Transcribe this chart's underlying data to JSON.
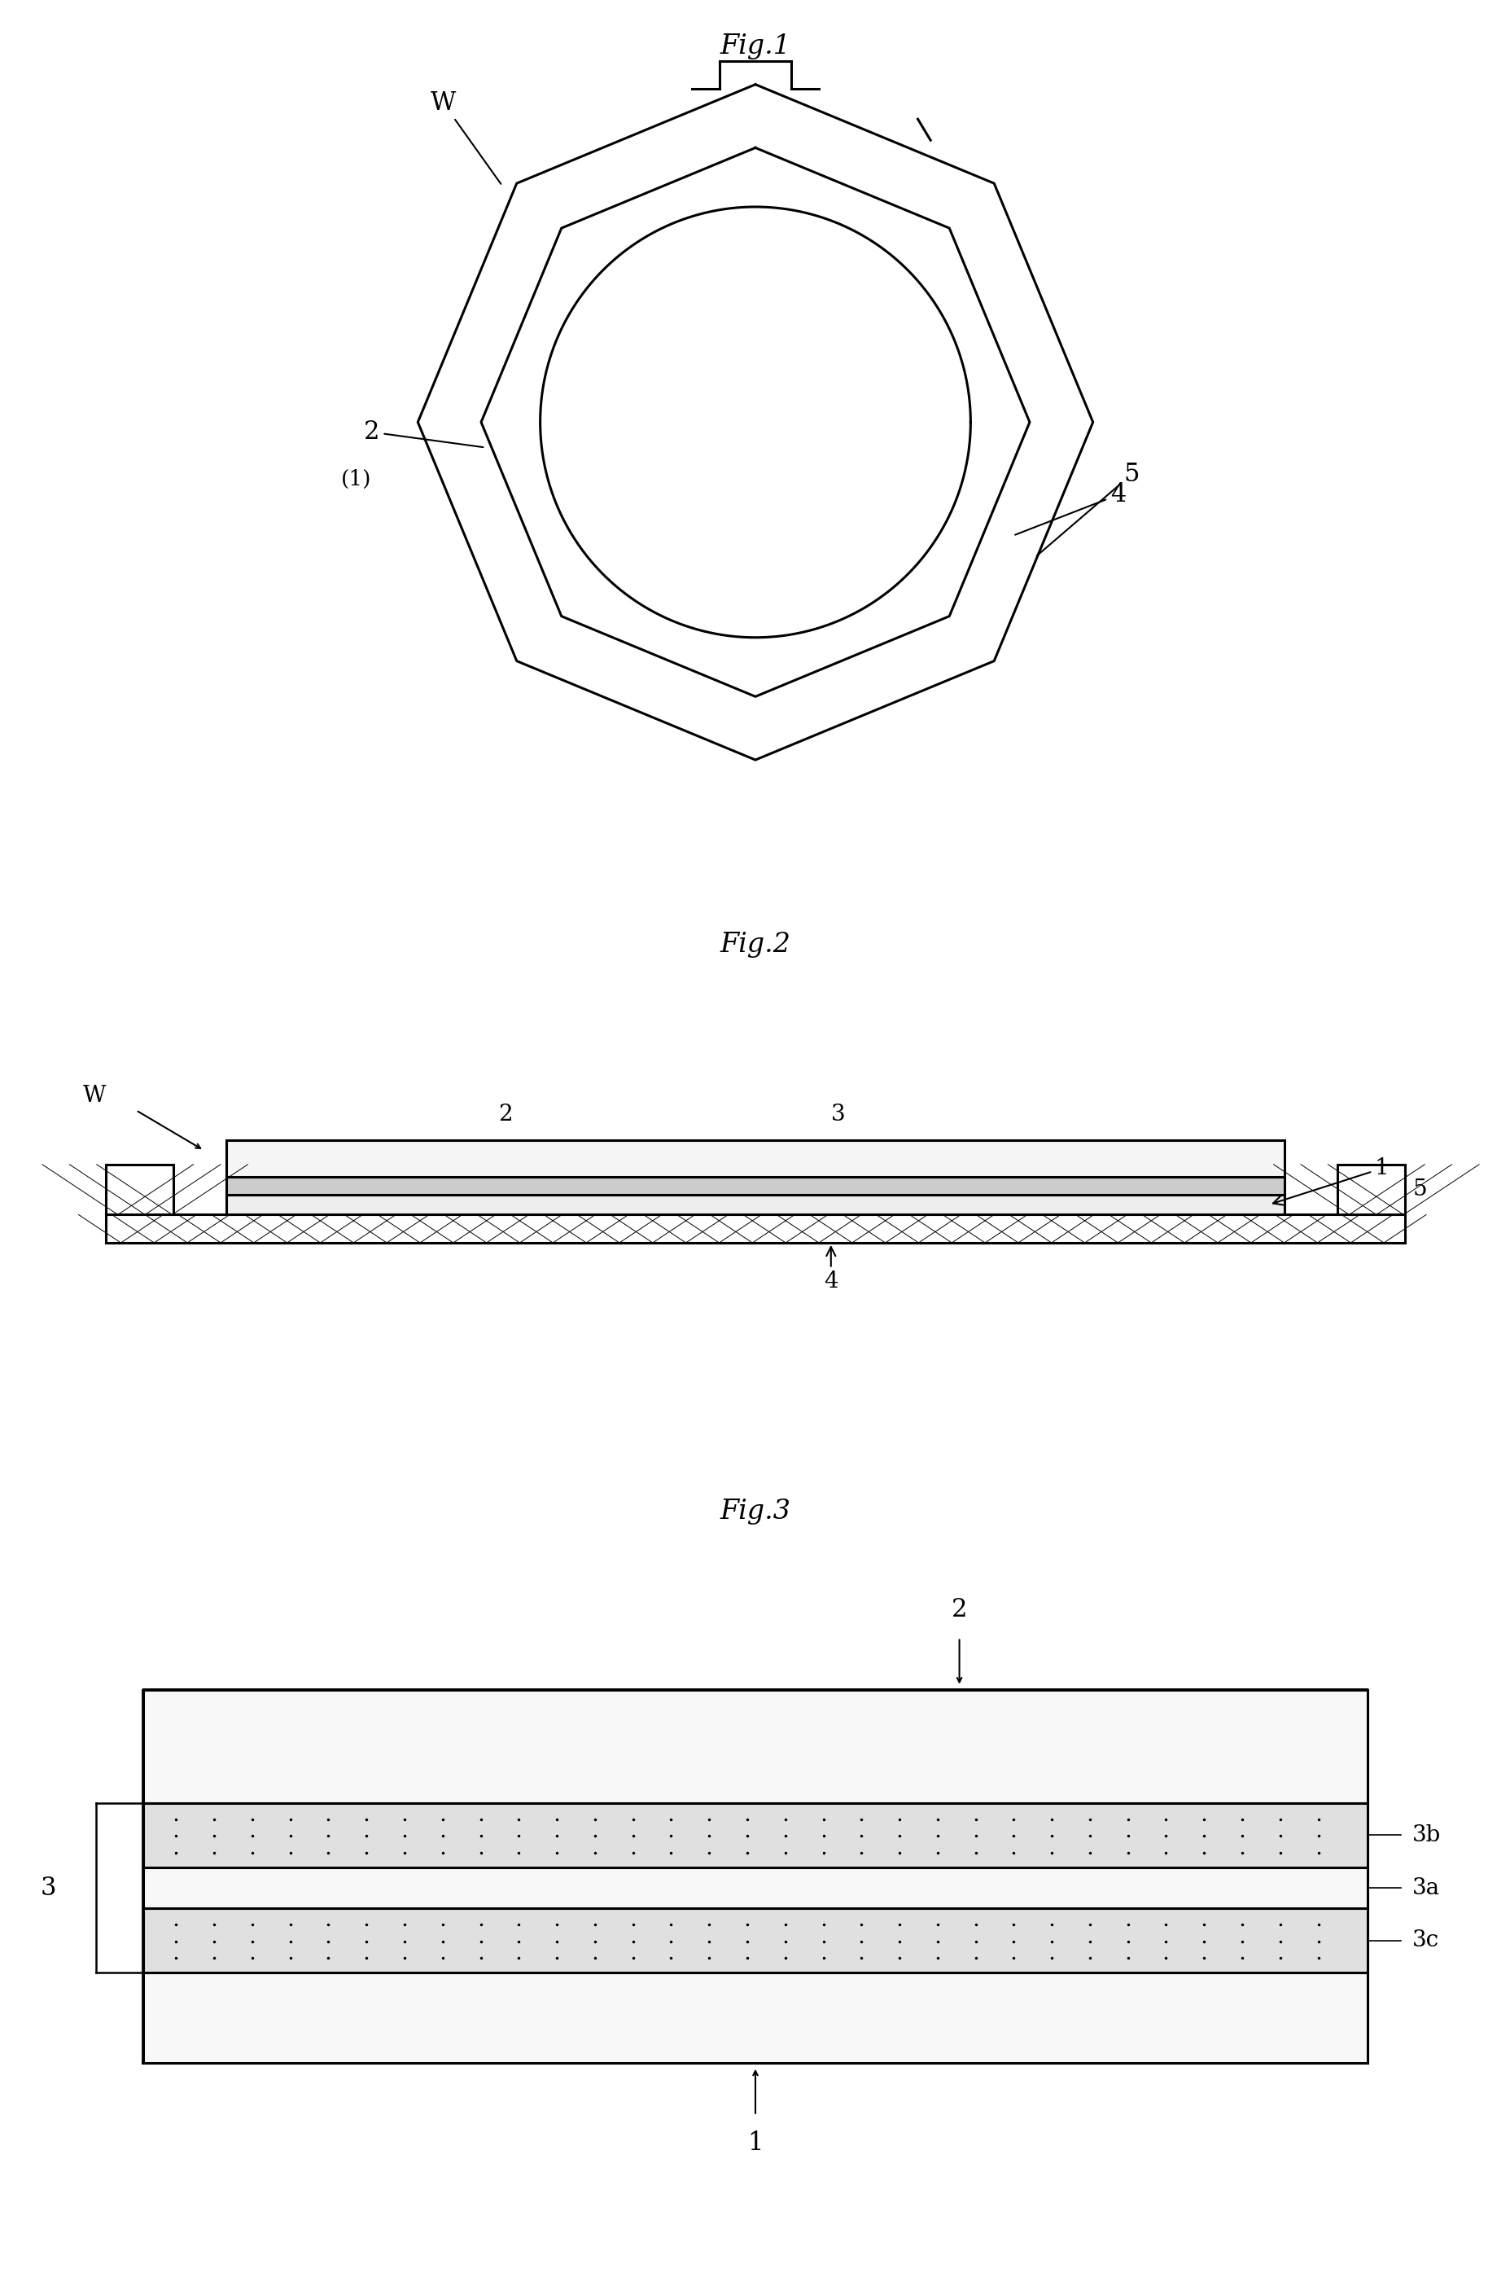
{
  "fig_title_fontsize": 24,
  "label_fontsize": 22,
  "background_color": "#ffffff",
  "line_color": "#000000",
  "fig1_title": "Fig.1",
  "fig2_title": "Fig.2",
  "fig3_title": "Fig.3",
  "lw_main": 2.2
}
